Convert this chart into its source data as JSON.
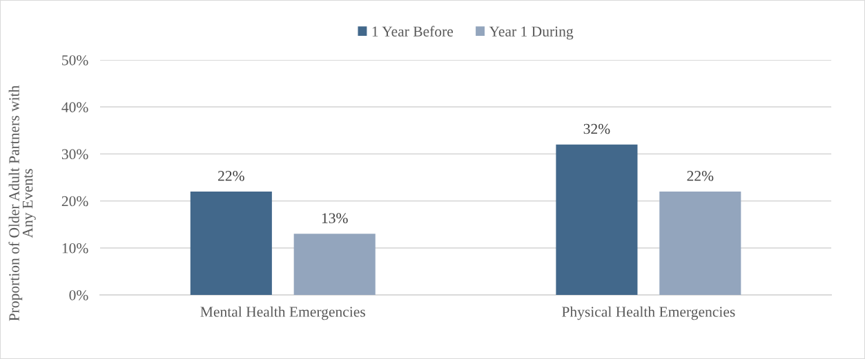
{
  "chart_data": {
    "type": "bar",
    "ylabel": "Proportion of Older Adult Partners with\nAny Events",
    "categories": [
      "Mental Health Emergencies",
      "Physical Health Emergencies"
    ],
    "series": [
      {
        "name": "1 Year Before",
        "color": "#42688b",
        "values": [
          22,
          32
        ],
        "value_labels": [
          "22%",
          "32%"
        ]
      },
      {
        "name": "Year 1 During",
        "color": "#93a5bd",
        "values": [
          13,
          22
        ],
        "value_labels": [
          "13%",
          "22%"
        ]
      }
    ],
    "ylim": [
      0,
      50
    ],
    "yticks": [
      {
        "value": 0,
        "label": "0%"
      },
      {
        "value": 10,
        "label": "10%"
      },
      {
        "value": 20,
        "label": "20%"
      },
      {
        "value": 30,
        "label": "30%"
      },
      {
        "value": 40,
        "label": "40%"
      },
      {
        "value": 50,
        "label": "50%"
      }
    ],
    "grid": "y",
    "legend": "top"
  }
}
